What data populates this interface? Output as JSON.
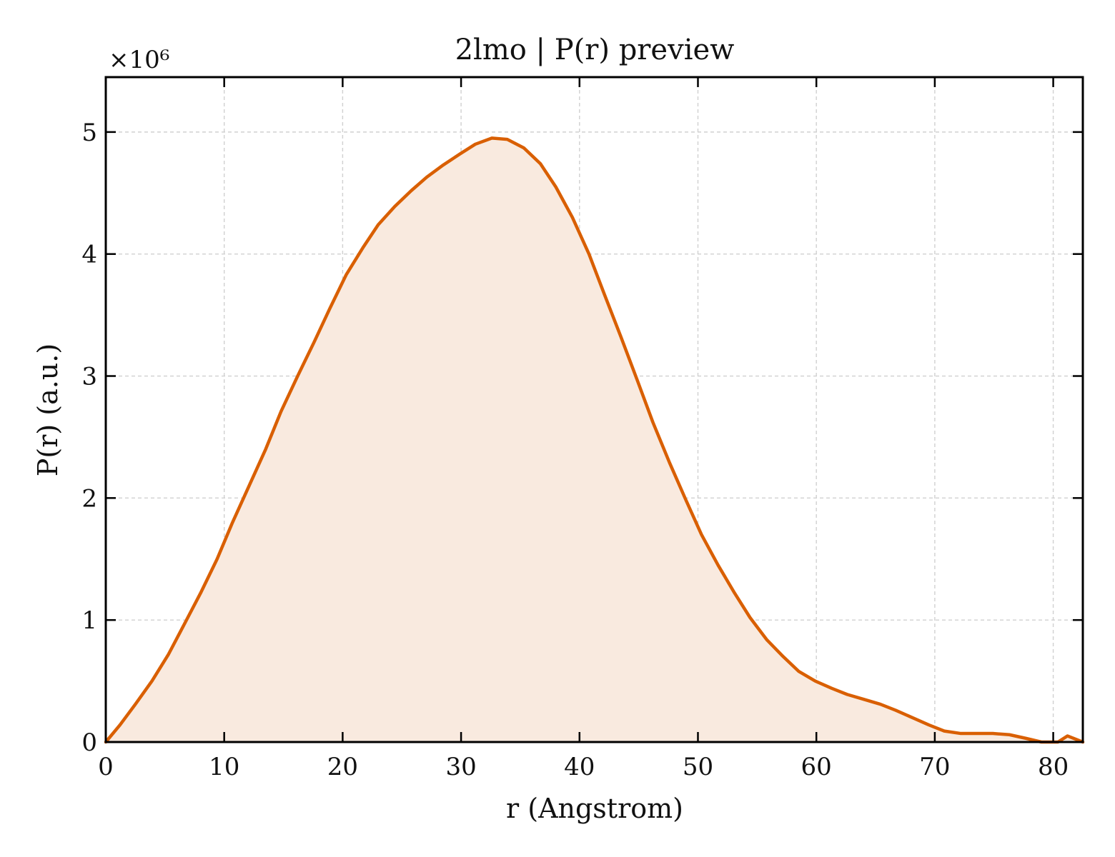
{
  "chart_data": {
    "type": "area",
    "title": "2lmo | P(r) preview",
    "xlabel": "r (Angstrom)",
    "ylabel": "P(r) (a.u.)",
    "y_multiplier_label": "×10⁶",
    "xlim": [
      0,
      82.5
    ],
    "ylim": [
      0,
      5.45
    ],
    "xticks": [
      0,
      10,
      20,
      30,
      40,
      50,
      60,
      70,
      80
    ],
    "yticks": [
      0,
      1,
      2,
      3,
      4,
      5
    ],
    "grid": true,
    "line_color": "#d95f02",
    "fill_color": "#f9eadf",
    "series": [
      {
        "x": [
          0,
          1.2,
          2.5,
          3.9,
          5.3,
          6.6,
          8.0,
          9.4,
          10.7,
          12.1,
          13.5,
          14.8,
          16.2,
          17.6,
          18.9,
          20.3,
          21.7,
          23.0,
          24.4,
          25.8,
          27.1,
          28.5,
          29.9,
          31.2,
          32.6,
          33.9,
          35.3,
          36.7,
          38.0,
          39.4,
          40.8,
          42.1,
          43.5,
          44.9,
          46.2,
          47.6,
          49.0,
          50.3,
          51.7,
          53.1,
          54.4,
          55.8,
          57.2,
          58.5,
          59.9,
          61.3,
          62.6,
          64.0,
          65.4,
          66.7,
          68.1,
          69.5,
          70.8,
          72.2,
          73.6,
          74.9,
          76.3,
          77.7,
          79.0,
          80.4,
          81.2,
          82.5
        ],
        "y": [
          0.0,
          0.14,
          0.31,
          0.5,
          0.72,
          0.96,
          1.22,
          1.5,
          1.8,
          2.1,
          2.4,
          2.71,
          3.0,
          3.28,
          3.55,
          3.83,
          4.05,
          4.24,
          4.39,
          4.52,
          4.63,
          4.73,
          4.82,
          4.9,
          4.95,
          4.94,
          4.87,
          4.74,
          4.55,
          4.3,
          4.0,
          3.67,
          3.32,
          2.96,
          2.62,
          2.29,
          1.98,
          1.7,
          1.45,
          1.22,
          1.02,
          0.84,
          0.7,
          0.58,
          0.5,
          0.44,
          0.39,
          0.35,
          0.31,
          0.26,
          0.2,
          0.14,
          0.09,
          0.07,
          0.07,
          0.07,
          0.06,
          0.03,
          0.0,
          0.0,
          0.05,
          0.0
        ]
      }
    ]
  }
}
